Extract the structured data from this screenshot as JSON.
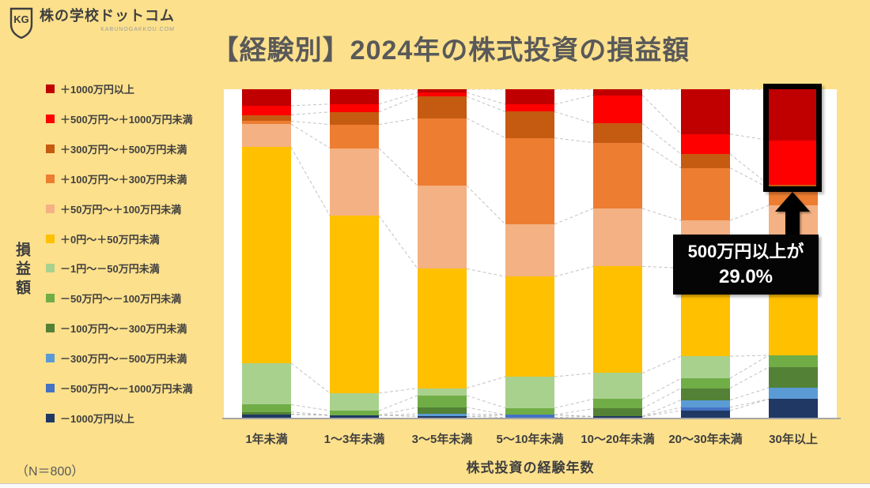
{
  "brand": {
    "name": "株の学校ドットコム",
    "domain": "KABUNOGAKKOU.COM",
    "monogram": "KG"
  },
  "title": "【経験別】2024年の株式投資の損益額",
  "y_axis_label": "損益額",
  "x_axis_label": "株式投資の経験年数",
  "sample_note": "（N＝800）",
  "annotation": {
    "line1": "500万円以上が",
    "line2": "29.0%"
  },
  "colors": {
    "background": "#FCE08C",
    "title_text": "#595959",
    "body_text": "#3f3f3f",
    "plot_background": "#ffffff",
    "axis_line": "#a6a6a6",
    "connector_dash": "#aeaeae",
    "annotation_bg": "#000000",
    "annotation_text": "#ffffff"
  },
  "chart_data": {
    "type": "bar",
    "variant": "100%-stacked-columns",
    "title": "【経験別】2024年の株式投資の損益額",
    "xlabel": "株式投資の経験年数",
    "ylabel": "損益額",
    "ylim": [
      0,
      100
    ],
    "grid": false,
    "legend_position": "left",
    "sample_size": "N＝800",
    "categories": [
      "1年未満",
      "1～3年未満",
      "3～5年未満",
      "5～10年未満",
      "10～20年未満",
      "20～30年未満",
      "30年以上"
    ],
    "series": [
      {
        "name": "＋1000万円以上",
        "color": "#C00000",
        "values": [
          5.0,
          4.5,
          1.0,
          4.6,
          1.8,
          13.6,
          15.5
        ]
      },
      {
        "name": "＋500万円～＋1000万円未満",
        "color": "#FF0000",
        "values": [
          2.8,
          2.4,
          1.2,
          2.2,
          8.6,
          6.1,
          13.5
        ]
      },
      {
        "name": "＋300万円～＋500万円未満",
        "color": "#C55A11",
        "values": [
          1.9,
          3.8,
          6.6,
          8.0,
          5.8,
          4.2,
          1.0
        ]
      },
      {
        "name": "＋100万円～＋300万円未満",
        "color": "#ED7D31",
        "values": [
          0.9,
          7.2,
          20.5,
          26.2,
          20.0,
          16.0,
          5.3
        ]
      },
      {
        "name": "＋50万円～＋100万円未満",
        "color": "#F4B183",
        "values": [
          7.0,
          20.5,
          25.2,
          15.9,
          17.6,
          14.4,
          15.4
        ]
      },
      {
        "name": "＋0円～＋50万円未満",
        "color": "#FFC000",
        "values": [
          65.6,
          53.9,
          36.3,
          30.4,
          32.4,
          26.8,
          30.1
        ]
      },
      {
        "name": "－1円～－50万円未満",
        "color": "#A9D18E",
        "values": [
          12.6,
          5.3,
          2.2,
          9.5,
          7.9,
          6.7,
          0.0
        ]
      },
      {
        "name": "－50万円～－100万円未満",
        "color": "#70AD47",
        "values": [
          2.2,
          1.4,
          3.6,
          2.1,
          2.9,
          3.0,
          3.6
        ]
      },
      {
        "name": "－100万円～－300万円未満",
        "color": "#538135",
        "values": [
          0.7,
          0.0,
          2.0,
          0.0,
          2.4,
          3.6,
          6.3
        ]
      },
      {
        "name": "－300万円～－500万円未満",
        "color": "#5B9BD5",
        "values": [
          0.0,
          0.0,
          0.7,
          0.0,
          0.0,
          2.2,
          3.4
        ]
      },
      {
        "name": "－500万円～－1000万円未満",
        "color": "#4472C4",
        "values": [
          0.0,
          0.0,
          0.0,
          0.8,
          0.0,
          1.0,
          0.0
        ]
      },
      {
        "name": "－1000万円以上",
        "color": "#203864",
        "values": [
          1.3,
          1.0,
          0.7,
          0.3,
          0.6,
          2.4,
          5.9
        ]
      }
    ],
    "highlight": {
      "category": "30年以上",
      "covers_series": [
        "＋1000万円以上",
        "＋500万円～＋1000万円未満"
      ],
      "total_percent": 29.0,
      "label": "500万円以上が 29.0%"
    }
  }
}
